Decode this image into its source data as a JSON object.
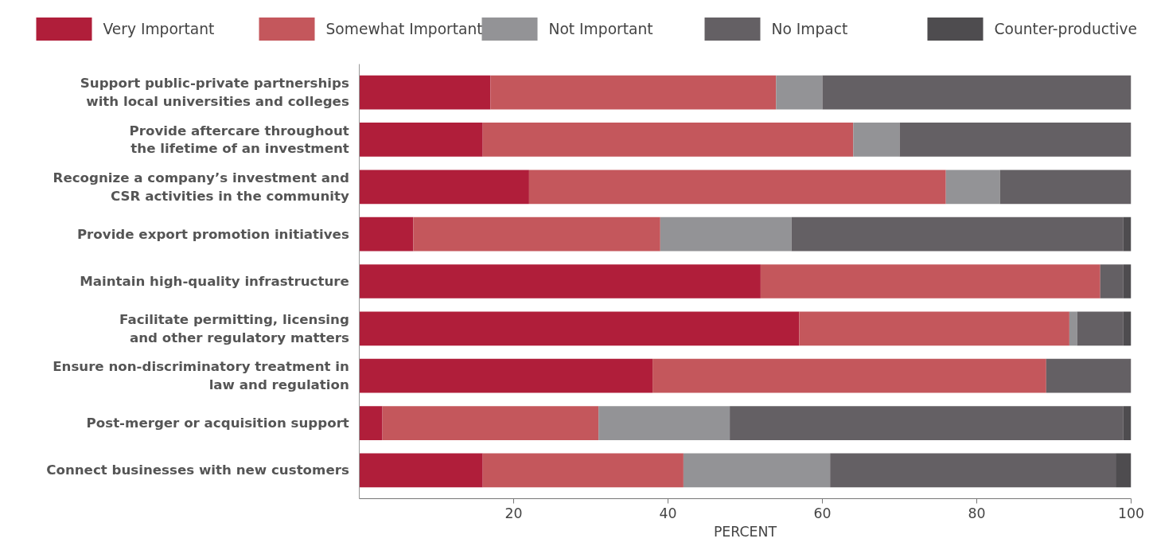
{
  "chart_data": {
    "type": "bar",
    "orientation": "horizontal",
    "stacked": true,
    "xlabel": "PERCENT",
    "categories": [
      "Support public-private partnerships\nwith local universities and colleges",
      "Provide aftercare throughout\nthe lifetime of an investment",
      "Recognize a company’s investment and\nCSR activities in the community",
      "Provide export promotion initiatives",
      "Maintain high-quality infrastructure",
      "Facilitate permitting, licensing\nand other regulatory matters",
      "Ensure non-discriminatory treatment in\nlaw and regulation",
      "Post-merger or acquisition support",
      "Connect businesses with new customers"
    ],
    "series": [
      {
        "name": "Very Important",
        "color": "#b01e3a",
        "values": [
          17,
          16,
          22,
          7,
          52,
          57,
          38,
          3,
          16
        ]
      },
      {
        "name": "Somewhat Important",
        "color": "#c4575c",
        "values": [
          37,
          48,
          54,
          32,
          44,
          35,
          51,
          28,
          26
        ]
      },
      {
        "name": "Not Important",
        "color": "#939396",
        "values": [
          6,
          6,
          7,
          17,
          0,
          1,
          0,
          17,
          19
        ]
      },
      {
        "name": "No Impact",
        "color": "#646064",
        "values": [
          40,
          30,
          17,
          43,
          3,
          6,
          11,
          51,
          37
        ]
      },
      {
        "name": "Counter-productive",
        "color": "#4e4c4f",
        "values": [
          0,
          0,
          0,
          1,
          1,
          1,
          0,
          1,
          2
        ]
      }
    ],
    "xlim": [
      0,
      100
    ],
    "xticks": [
      20,
      40,
      60,
      80,
      100
    ],
    "grid": false,
    "legend": "top"
  }
}
